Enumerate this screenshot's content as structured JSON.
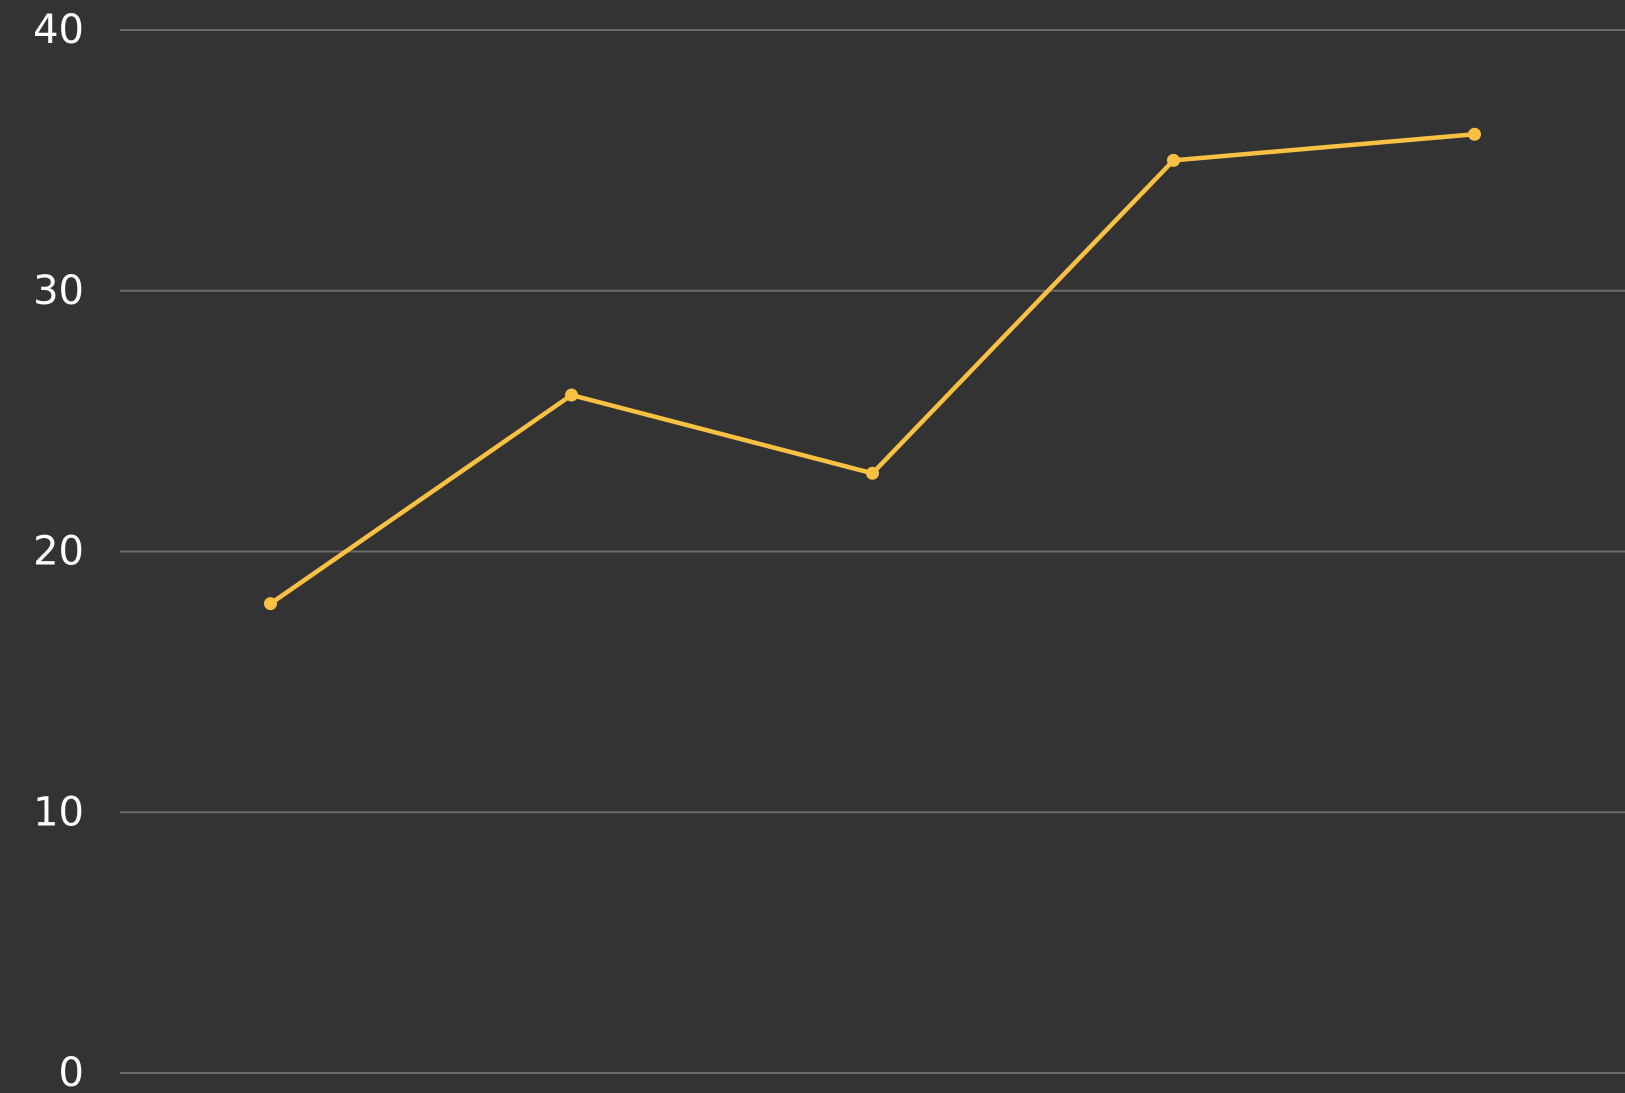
{
  "chart_data": {
    "type": "line",
    "categories": [
      null,
      null,
      null,
      null,
      null
    ],
    "values": [
      18,
      26,
      23,
      35,
      36
    ],
    "color": "#f8c144",
    "ylim": [
      0,
      40
    ],
    "yticks": [
      0,
      10,
      20,
      30,
      40
    ],
    "grid": true
  }
}
